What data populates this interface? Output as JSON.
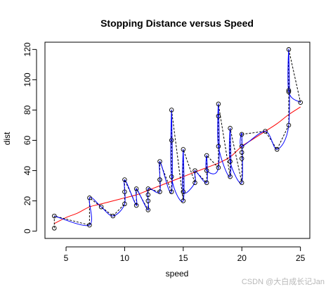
{
  "chart_data": {
    "type": "scatter",
    "title": "Stopping Distance versus Speed",
    "xlabel": "speed",
    "ylabel": "dist",
    "xlim": [
      3.2,
      25.8
    ],
    "ylim": [
      -4.8,
      124.8
    ],
    "xticks": [
      5,
      10,
      15,
      20,
      25
    ],
    "yticks": [
      0,
      20,
      40,
      60,
      80,
      100,
      120
    ],
    "grid": false,
    "legend": "none",
    "colors": {
      "points": "#000000",
      "dashed_path": "#000000",
      "smooth_path": "#0000ff",
      "trend": "#ff0000"
    },
    "series": [
      {
        "type": "scatter",
        "x": [
          4,
          4,
          7,
          7,
          8,
          9,
          10,
          10,
          10,
          11,
          11,
          12,
          12,
          12,
          12,
          13,
          13,
          13,
          13,
          14,
          14,
          14,
          14,
          15,
          15,
          15,
          16,
          16,
          17,
          17,
          17,
          18,
          18,
          18,
          18,
          19,
          19,
          19,
          20,
          20,
          20,
          20,
          20,
          22,
          23,
          24,
          24,
          24,
          24,
          25
        ],
        "y": [
          2,
          10,
          4,
          22,
          16,
          10,
          18,
          26,
          34,
          17,
          28,
          14,
          20,
          24,
          28,
          26,
          34,
          34,
          46,
          26,
          36,
          60,
          80,
          20,
          26,
          54,
          32,
          40,
          32,
          40,
          50,
          42,
          56,
          76,
          84,
          36,
          46,
          68,
          32,
          48,
          52,
          56,
          64,
          66,
          54,
          70,
          92,
          93,
          120,
          85
        ]
      },
      {
        "type": "line",
        "style": "dashed",
        "x": [
          4,
          4,
          7,
          7,
          8,
          9,
          10,
          10,
          10,
          11,
          11,
          12,
          12,
          12,
          12,
          13,
          13,
          13,
          13,
          14,
          14,
          14,
          14,
          15,
          15,
          15,
          16,
          16,
          17,
          17,
          17,
          18,
          18,
          18,
          18,
          19,
          19,
          19,
          20,
          20,
          20,
          20,
          20,
          22,
          23,
          24,
          24,
          24,
          24,
          25
        ],
        "y": [
          2,
          10,
          4,
          22,
          16,
          10,
          18,
          26,
          34,
          17,
          28,
          14,
          20,
          24,
          28,
          26,
          34,
          34,
          46,
          26,
          36,
          60,
          80,
          20,
          26,
          54,
          32,
          40,
          32,
          40,
          50,
          42,
          56,
          76,
          84,
          36,
          46,
          68,
          32,
          48,
          52,
          56,
          64,
          66,
          54,
          70,
          92,
          93,
          120,
          85
        ]
      },
      {
        "type": "line",
        "style": "smooth",
        "x": [
          4,
          7,
          7,
          8,
          9,
          10,
          10,
          11,
          11,
          12,
          12,
          13,
          13,
          14,
          14,
          14,
          15,
          15,
          15,
          16,
          16,
          17,
          17,
          17,
          18,
          18,
          18,
          19,
          19,
          19,
          20,
          20,
          20,
          22,
          23,
          24,
          24,
          24,
          25
        ],
        "y": [
          10,
          4,
          22,
          16,
          10,
          18,
          34,
          17,
          28,
          14,
          28,
          26,
          46,
          26,
          80,
          36,
          20,
          54,
          26,
          32,
          40,
          32,
          50,
          40,
          42,
          84,
          56,
          36,
          68,
          46,
          32,
          64,
          56,
          66,
          54,
          70,
          120,
          92,
          85
        ]
      },
      {
        "type": "line",
        "style": "smooth",
        "x": [
          4,
          5,
          6,
          7,
          8,
          9,
          10,
          11,
          12,
          13,
          14,
          15,
          16,
          17,
          18,
          19,
          20,
          21,
          22,
          23,
          24,
          25
        ],
        "y": [
          5,
          9,
          12,
          16,
          18,
          20,
          22,
          24,
          27,
          30,
          33,
          36,
          39,
          42,
          45,
          49,
          56,
          61,
          66,
          71,
          77,
          82
        ]
      }
    ]
  },
  "watermark": "CSDN @大白成长记Jan"
}
